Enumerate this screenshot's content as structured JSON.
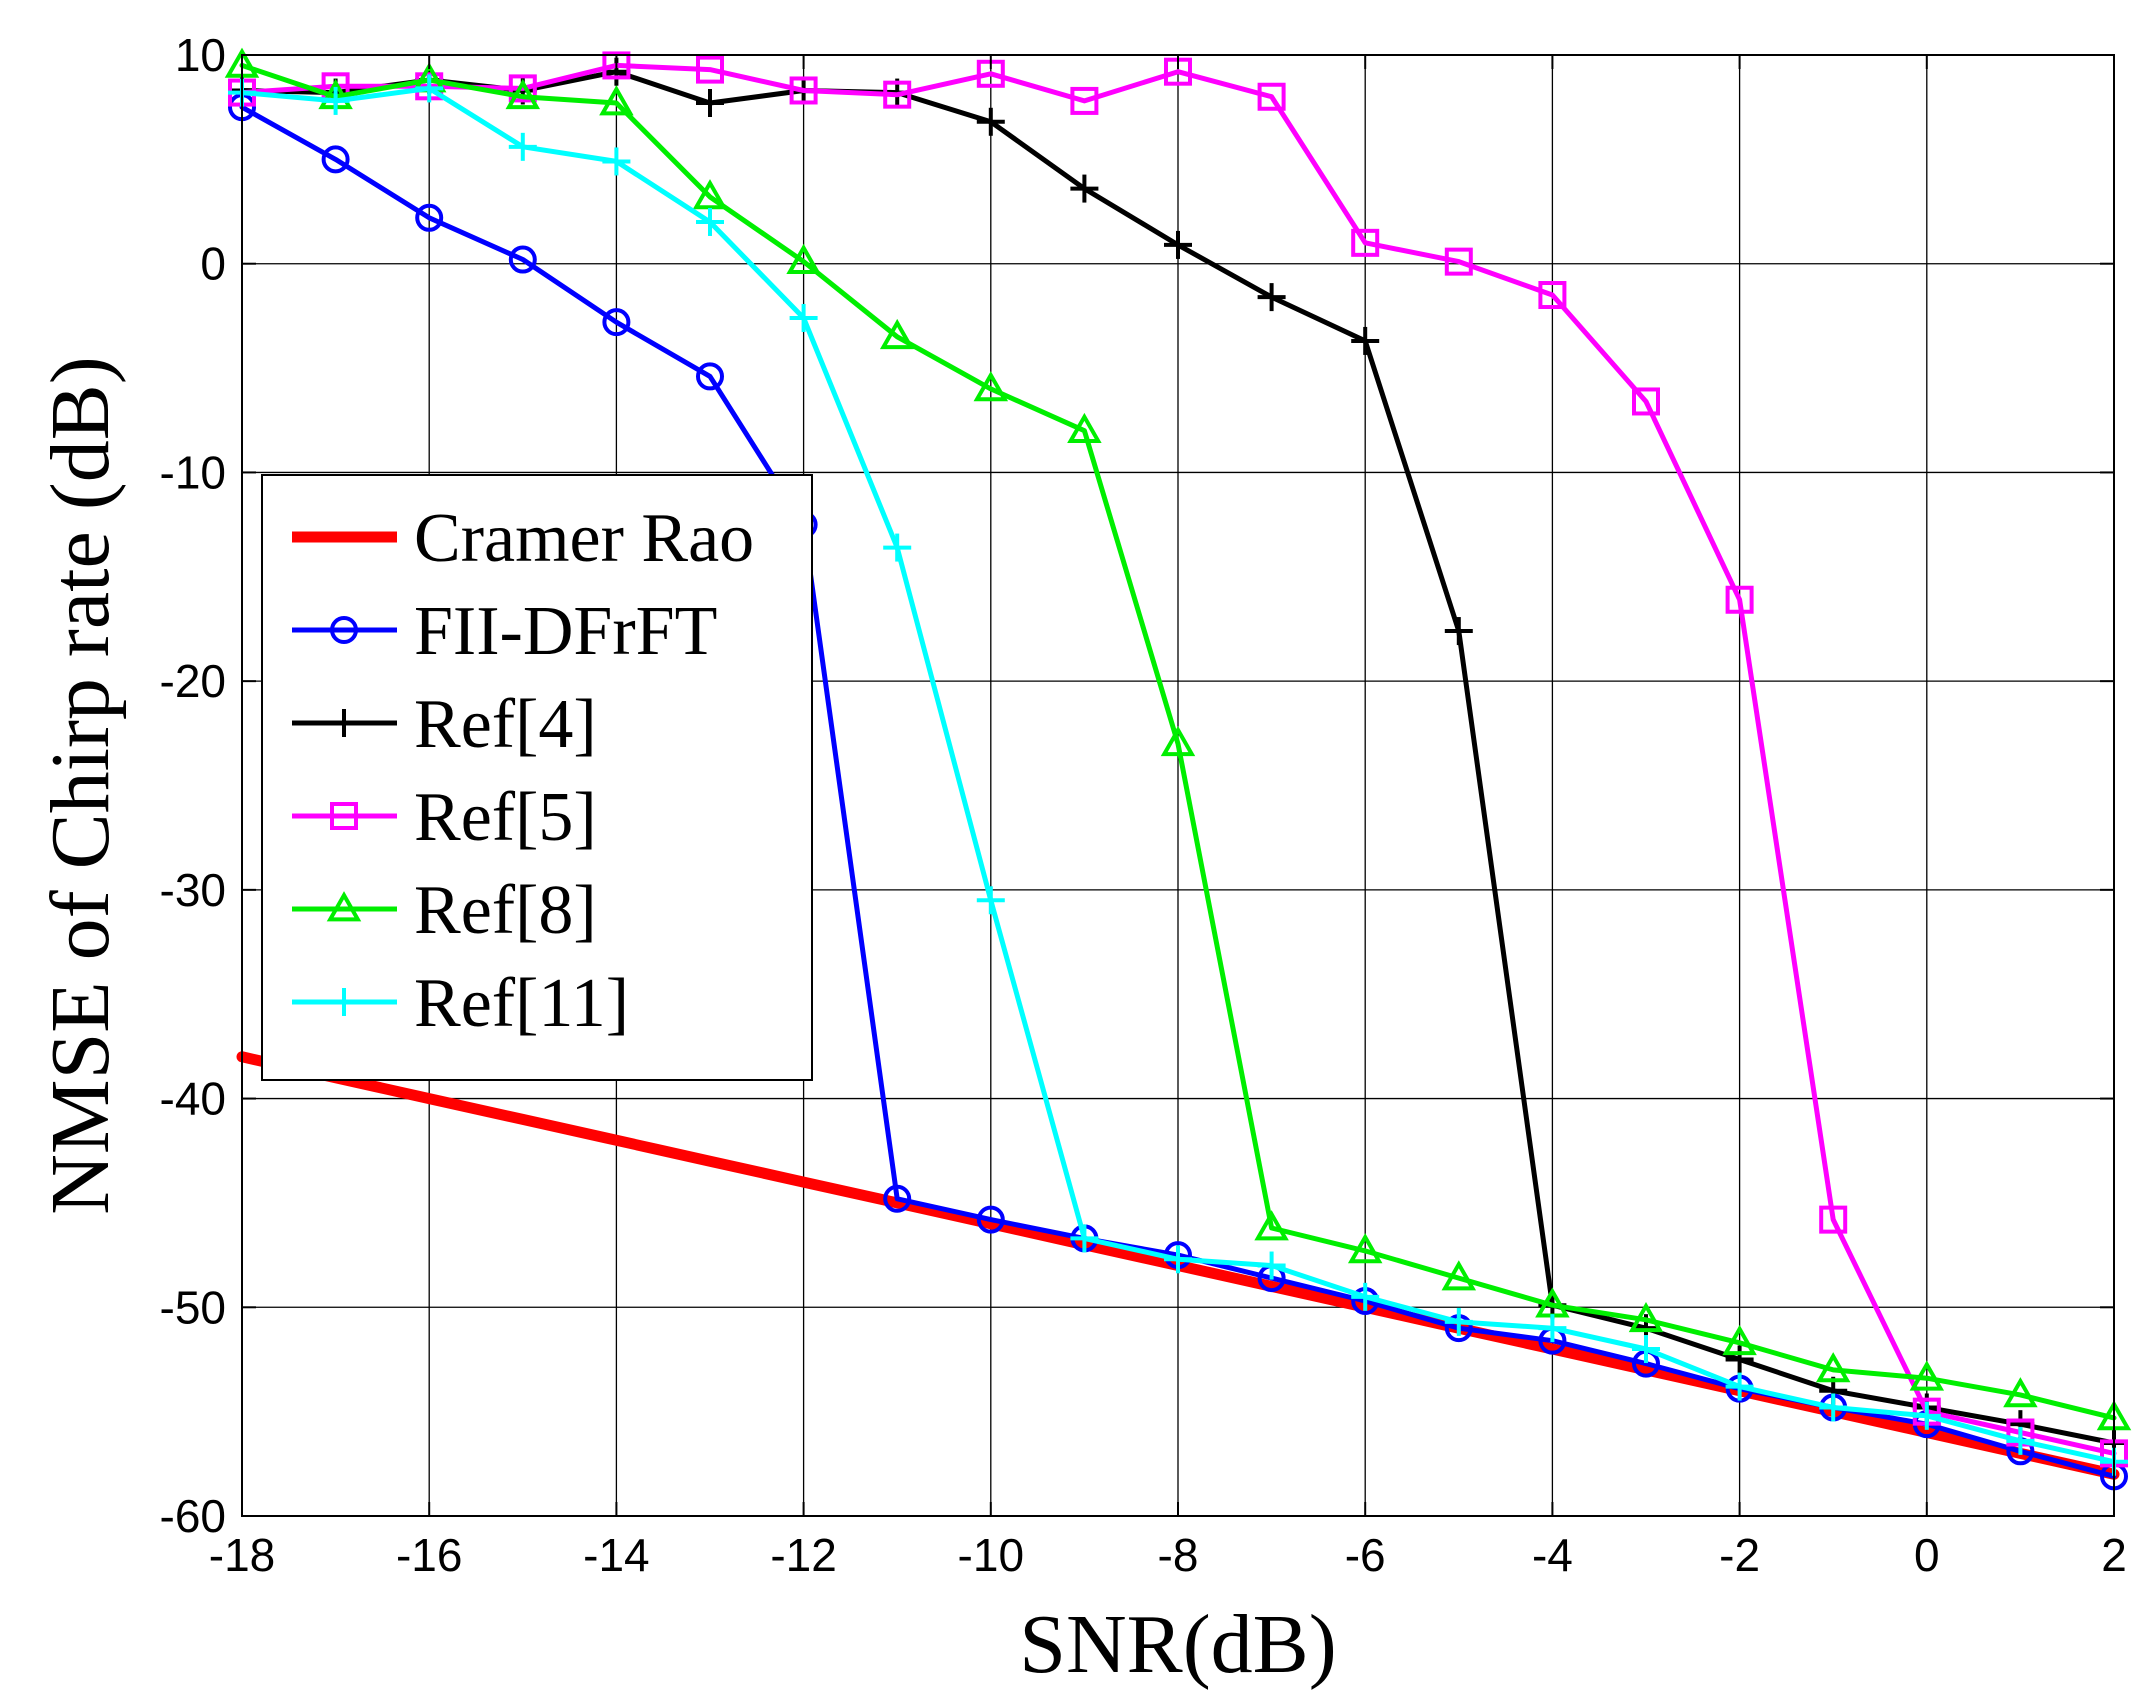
{
  "chart_data": {
    "type": "line",
    "title": "",
    "xlabel": "SNR(dB)",
    "ylabel": "NMSE of Chirp rate (dB)",
    "xlim": [
      -18,
      2
    ],
    "ylim": [
      -60,
      10
    ],
    "xticks": [
      -18,
      -16,
      -14,
      -12,
      -10,
      -8,
      -6,
      -4,
      -2,
      0,
      2
    ],
    "yticks": [
      10,
      0,
      -10,
      -20,
      -30,
      -40,
      -50,
      -60
    ],
    "grid": true,
    "legend_position": "left",
    "x": [
      -18,
      -17,
      -16,
      -15,
      -14,
      -13,
      -12,
      -11,
      -10,
      -9,
      -8,
      -7,
      -6,
      -5,
      -4,
      -3,
      -2,
      -1,
      0,
      1,
      2
    ],
    "series": [
      {
        "name": "Cramer Rao",
        "color": "#ff0000",
        "marker": "none",
        "values": [
          -38,
          -39,
          -40,
          -41,
          -42,
          -43,
          -44,
          -45,
          -46,
          -47,
          -48,
          -49,
          -50,
          -51,
          -52,
          -53,
          -54,
          -55,
          -56,
          -57,
          -58
        ]
      },
      {
        "name": "FII-DFrFT",
        "color": "#0000ff",
        "marker": "circle",
        "values": [
          7.5,
          5,
          2.2,
          0.2,
          -2.8,
          -5.4,
          -12.5,
          -44.8,
          -45.8,
          -46.7,
          -47.5,
          -48.6,
          -49.7,
          -51,
          -51.6,
          -52.7,
          -53.9,
          -54.8,
          -55.6,
          -56.9,
          -58.1
        ]
      },
      {
        "name": "Ref[4]",
        "color": "#000000",
        "marker": "plus",
        "values": [
          8.3,
          8.2,
          8.8,
          8.3,
          9.2,
          7.7,
          8.3,
          8.2,
          6.8,
          3.6,
          0.9,
          -1.6,
          -3.7,
          -17.6,
          -49.9,
          -51,
          -52.5,
          -54,
          -54.8,
          -55.6,
          -56.5
        ]
      },
      {
        "name": "Ref[5]",
        "color": "#ff00ff",
        "marker": "square",
        "values": [
          8.2,
          8.5,
          8.5,
          8.4,
          9.5,
          9.3,
          8.3,
          8.1,
          9.1,
          7.8,
          9.2,
          8,
          1,
          0.1,
          -1.5,
          -6.6,
          -16.1,
          -45.8,
          -55,
          -56,
          -57
        ]
      },
      {
        "name": "Ref[8]",
        "color": "#00ee00",
        "marker": "triangle",
        "values": [
          9.5,
          8,
          8.8,
          8,
          7.7,
          3.2,
          0.1,
          -3.5,
          -6,
          -8,
          -23,
          -46.2,
          -47.3,
          -48.6,
          -49.9,
          -50.6,
          -51.7,
          -53,
          -53.4,
          -54.2,
          -55.3
        ]
      },
      {
        "name": "Ref[11]",
        "color": "#00ffff",
        "marker": "plus",
        "values": [
          8.2,
          7.8,
          8.4,
          5.6,
          4.9,
          2,
          -2.6,
          -13.6,
          -30.5,
          -46.7,
          -47.7,
          -48,
          -49.5,
          -50.7,
          -51,
          -52,
          -53.8,
          -54.8,
          -55.2,
          -56.4,
          -57.4
        ]
      }
    ]
  }
}
